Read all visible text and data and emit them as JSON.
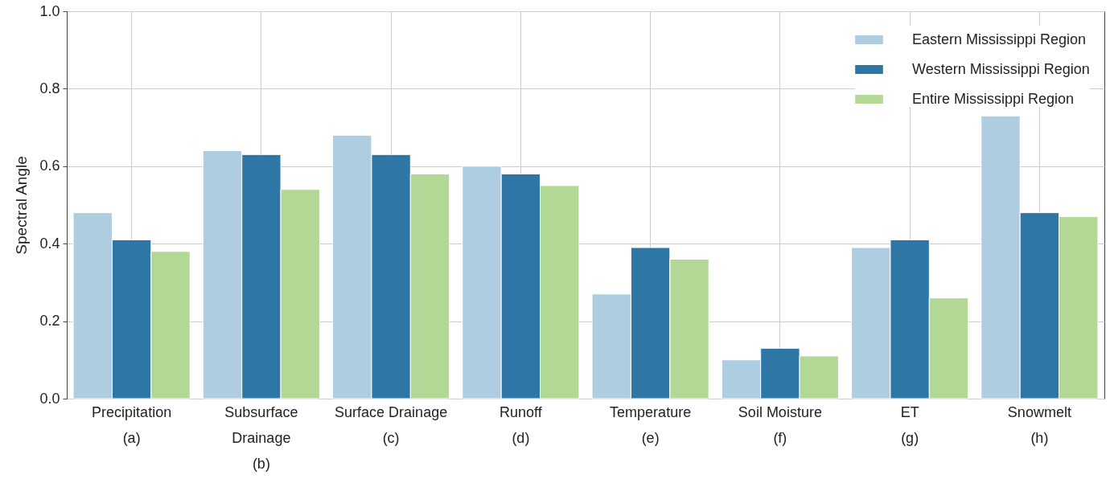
{
  "chart_data": {
    "type": "bar",
    "categories": [
      "Precipitation\n\n(a)",
      "Subsurface\nDrainage\n(b)",
      "Surface Drainage\n\n(c)",
      "Runoff\n\n(d)",
      "Temperature\n\n(e)",
      "Soil Moisture\n\n(f)",
      "ET\n\n(g)",
      "Snowmelt\n\n(h)"
    ],
    "series": [
      {
        "name": "Eastern Mississippi Region",
        "color": "#aecde0",
        "values": [
          0.48,
          0.64,
          0.68,
          0.6,
          0.27,
          0.1,
          0.39,
          0.73
        ]
      },
      {
        "name": "Western Mississippi Region",
        "color": "#2e76a6",
        "values": [
          0.41,
          0.63,
          0.63,
          0.58,
          0.39,
          0.13,
          0.41,
          0.48
        ]
      },
      {
        "name": "Entire Mississippi Region",
        "color": "#b3d795",
        "values": [
          0.38,
          0.54,
          0.58,
          0.55,
          0.36,
          0.11,
          0.26,
          0.47
        ]
      }
    ],
    "ylabel": "Spectral Angle",
    "ylim": [
      0,
      1.0
    ],
    "yticks": [
      {
        "value": 0,
        "label": "0.0"
      },
      {
        "value": 0.2,
        "label": "0.2"
      },
      {
        "value": 0.4,
        "label": "0.4"
      },
      {
        "value": 0.6,
        "label": "0.6"
      },
      {
        "value": 0.8,
        "label": "0.8"
      },
      {
        "value": 1.0,
        "label": "1.0"
      }
    ],
    "grid": true,
    "legend": "top right"
  }
}
